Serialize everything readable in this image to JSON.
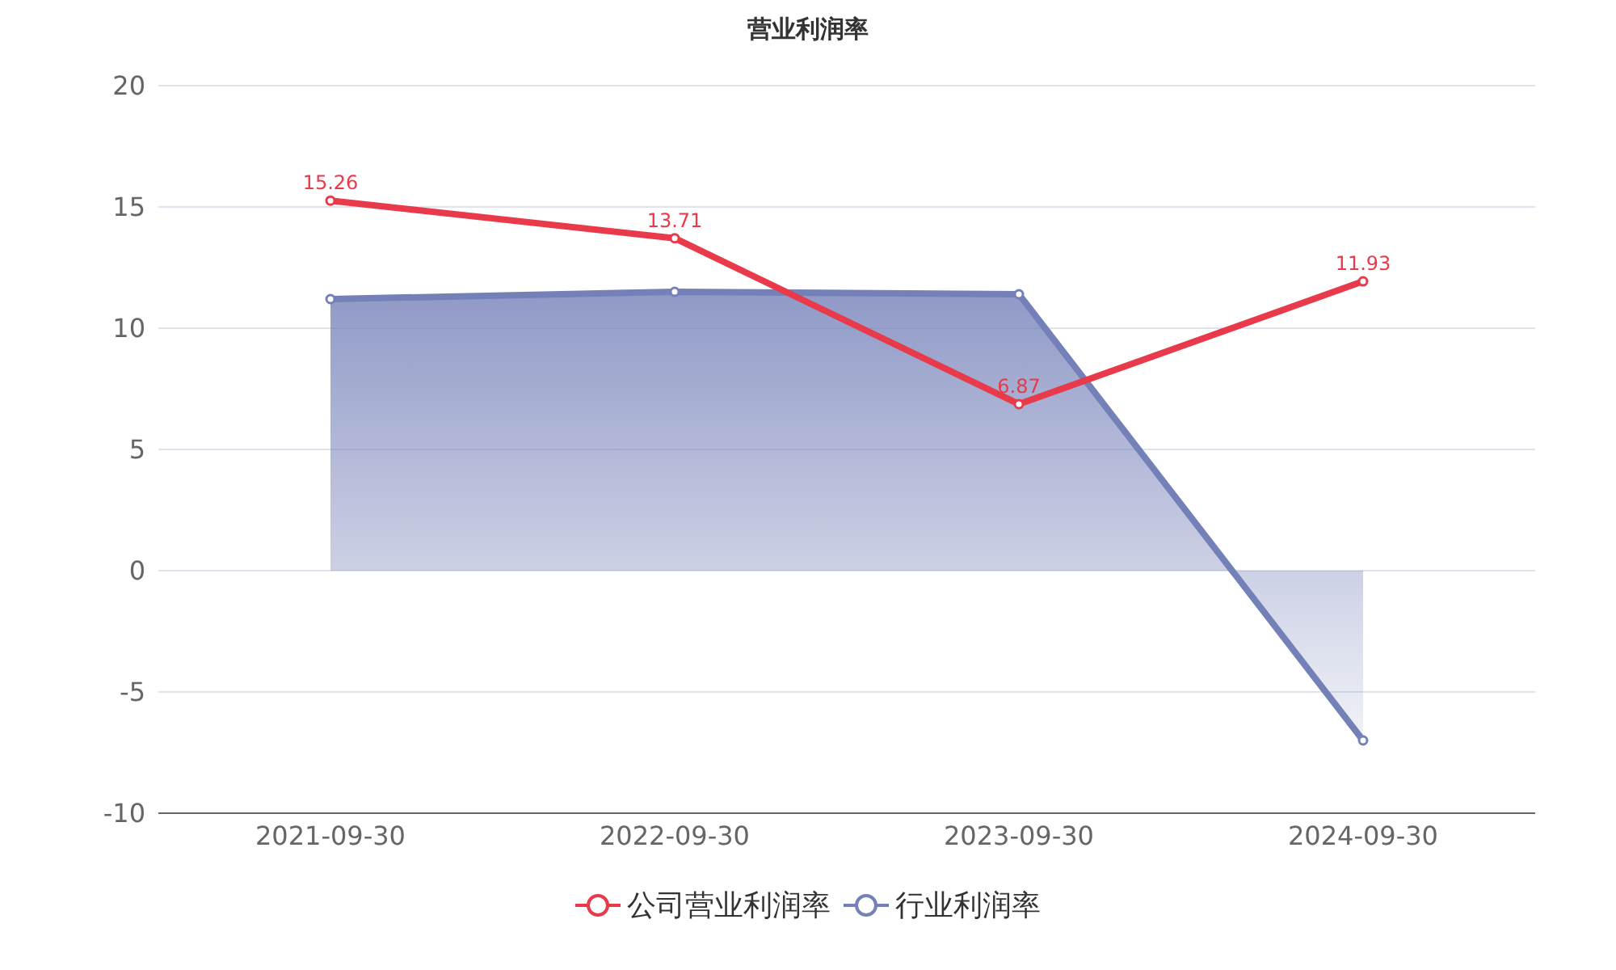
{
  "chart_data": {
    "type": "line",
    "title": "营业利润率",
    "categories": [
      "2021-09-30",
      "2022-09-30",
      "2023-09-30",
      "2024-09-30"
    ],
    "series": [
      {
        "name": "公司营业利润率",
        "color": "#e83a4a",
        "values": [
          15.26,
          13.71,
          6.87,
          11.93
        ],
        "value_labels": [
          "15.26",
          "13.71",
          "6.87",
          "11.93"
        ]
      },
      {
        "name": "行业利润率",
        "color": "#7480b8",
        "type": "area",
        "values": [
          11.2,
          11.5,
          11.4,
          -7.0
        ]
      }
    ],
    "ylim": [
      -10,
      20
    ],
    "yticks": [
      -10,
      -5,
      0,
      5,
      10,
      15,
      20
    ],
    "grid": "y",
    "legend": "bottom",
    "marker": "circle"
  }
}
